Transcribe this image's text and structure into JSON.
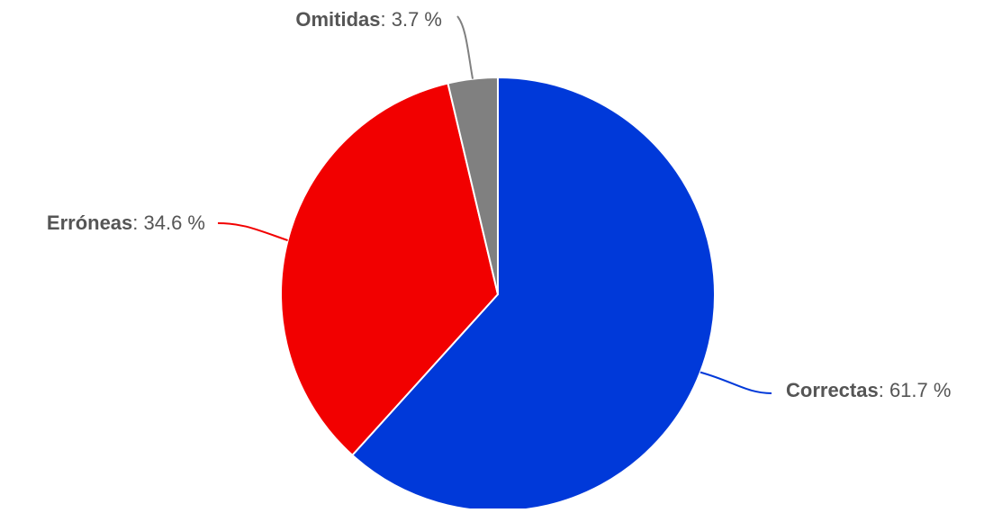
{
  "chart_data": {
    "type": "pie",
    "title": "",
    "slices": [
      {
        "name": "Correctas",
        "value": 61.7,
        "display": ": 61.7 %",
        "color": "#0039d9"
      },
      {
        "name": "Erróneas",
        "value": 34.6,
        "display": ": 34.6 %",
        "color": "#f20000"
      },
      {
        "name": "Omitidas",
        "value": 3.7,
        "display": ": 3.7 %",
        "color": "#808080"
      }
    ],
    "start_angle": "12 o'clock",
    "direction": "clockwise",
    "legend": "none",
    "data_labels": "outside with connector lines"
  }
}
